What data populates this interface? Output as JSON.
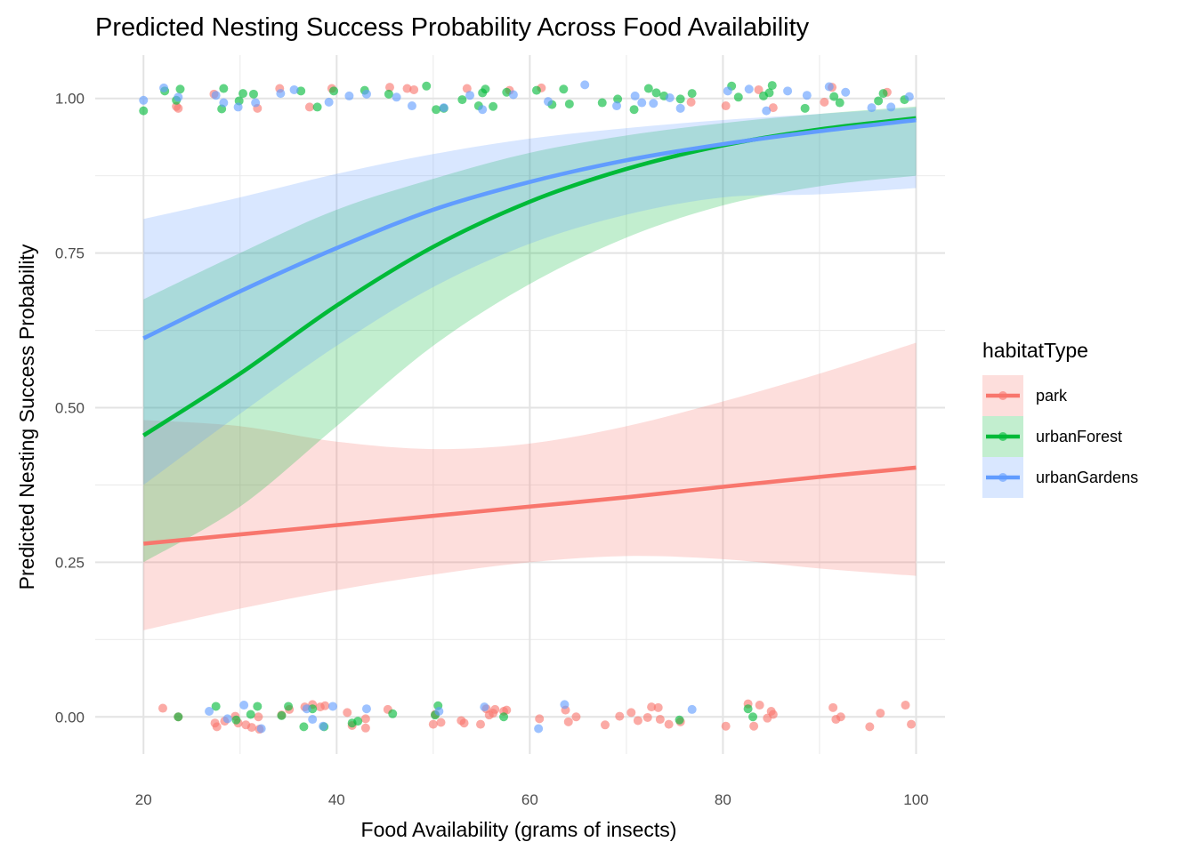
{
  "chart_data": {
    "type": "line",
    "title": "Predicted Nesting Success Probability Across Food Availability",
    "xlabel": "Food Availability (grams of insects)",
    "ylabel": "Predicted Nesting Success Probability",
    "xlim": [
      15,
      103
    ],
    "ylim": [
      -0.06,
      1.07
    ],
    "x_ticks": [
      20,
      40,
      60,
      80,
      100
    ],
    "x_tick_labels": [
      "20",
      "40",
      "60",
      "80",
      "100"
    ],
    "y_ticks": [
      0,
      0.25,
      0.5,
      0.75,
      1
    ],
    "y_tick_labels": [
      "0.00",
      "0.25",
      "0.50",
      "0.75",
      "1.00"
    ],
    "grid": true,
    "legend": {
      "title": "habitatType",
      "placement": "right",
      "entries": [
        "park",
        "urbanForest",
        "urbanGardens"
      ]
    },
    "x": [
      20,
      30,
      40,
      50,
      60,
      70,
      80,
      90,
      100
    ],
    "series": [
      {
        "name": "park",
        "color": "#F8766D",
        "fit": [
          0.28,
          0.295,
          0.31,
          0.325,
          0.34,
          0.355,
          0.372,
          0.388,
          0.403
        ],
        "lower": [
          0.14,
          0.175,
          0.205,
          0.23,
          0.25,
          0.26,
          0.255,
          0.24,
          0.228
        ],
        "upper": [
          0.48,
          0.47,
          0.445,
          0.433,
          0.442,
          0.47,
          0.51,
          0.555,
          0.605
        ],
        "points": [
          [
            22,
            0.014
          ],
          [
            23.6,
            0
          ],
          [
            27.4,
            -0.01
          ],
          [
            27.6,
            -0.016
          ],
          [
            28.4,
            -0.007
          ],
          [
            29.5,
            0.001
          ],
          [
            29.8,
            -0.01
          ],
          [
            30.6,
            -0.013
          ],
          [
            31.2,
            -0.017
          ],
          [
            31.9,
            0
          ],
          [
            32,
            -0.02
          ],
          [
            34.3,
            0.003
          ],
          [
            35.1,
            0.012
          ],
          [
            36.7,
            0.016
          ],
          [
            37.5,
            0.02
          ],
          [
            38.3,
            0.016
          ],
          [
            38.8,
            0.018
          ],
          [
            41.1,
            0.007
          ],
          [
            41.6,
            -0.014
          ],
          [
            43.0,
            -0.003
          ],
          [
            43.0,
            -0.018
          ],
          [
            45.3,
            0.012
          ],
          [
            50.0,
            -0.012
          ],
          [
            50.2,
            0.004
          ],
          [
            50.8,
            -0.009
          ],
          [
            52.9,
            -0.006
          ],
          [
            53.2,
            -0.01
          ],
          [
            54.9,
            -0.012
          ],
          [
            55.5,
            0.013
          ],
          [
            55.8,
            0.003
          ],
          [
            56.2,
            0.006
          ],
          [
            56.4,
            0.012
          ],
          [
            57.3,
            0.009
          ],
          [
            57.6,
            0.011
          ],
          [
            61.0,
            -0.003
          ],
          [
            63.7,
            0.011
          ],
          [
            64.0,
            -0.008
          ],
          [
            64.8,
            0
          ],
          [
            67.8,
            -0.013
          ],
          [
            69.3,
            0.001
          ],
          [
            70.5,
            0.007
          ],
          [
            71.2,
            -0.006
          ],
          [
            72.2,
            -0.001
          ],
          [
            72.6,
            0.016
          ],
          [
            73.3,
            0.015
          ],
          [
            73.5,
            -0.004
          ],
          [
            74.4,
            -0.012
          ],
          [
            75.6,
            -0.008
          ],
          [
            80.3,
            -0.015
          ],
          [
            82.6,
            0.021
          ],
          [
            83.2,
            -0.015
          ],
          [
            83.8,
            0.019
          ],
          [
            84.6,
            -0.002
          ],
          [
            85.0,
            0.009
          ],
          [
            85.2,
            0.004
          ],
          [
            91.4,
            0.015
          ],
          [
            91.7,
            -0.004
          ],
          [
            92.2,
            0
          ],
          [
            95.2,
            -0.016
          ],
          [
            96.3,
            0.006
          ],
          [
            98.9,
            0.019
          ],
          [
            99.5,
            -0.012
          ],
          [
            23.4,
            0.987
          ],
          [
            23.6,
            0.984
          ],
          [
            27.3,
            1.007
          ],
          [
            31.8,
            0.984
          ],
          [
            34.1,
            1.016
          ],
          [
            37.2,
            0.986
          ],
          [
            39.5,
            1.016
          ],
          [
            45.5,
            1.018
          ],
          [
            47.3,
            1.016
          ],
          [
            48.0,
            1.014
          ],
          [
            53.5,
            1.016
          ],
          [
            57.9,
            1.013
          ],
          [
            61.2,
            1.017
          ],
          [
            76.7,
            0.994
          ],
          [
            80.3,
            0.988
          ],
          [
            83.7,
            1.014
          ],
          [
            85.2,
            0.985
          ],
          [
            90.5,
            0.994
          ],
          [
            91.3,
            1.018
          ],
          [
            97.0,
            1.01
          ]
        ],
        "data_label": ""
      },
      {
        "name": "urbanForest",
        "color": "#00BA38",
        "fit": [
          0.455,
          0.555,
          0.665,
          0.76,
          0.833,
          0.886,
          0.924,
          0.95,
          0.968
        ],
        "lower": [
          0.25,
          0.34,
          0.47,
          0.6,
          0.7,
          0.775,
          0.827,
          0.858,
          0.875
        ],
        "upper": [
          0.675,
          0.75,
          0.82,
          0.87,
          0.912,
          0.94,
          0.96,
          0.975,
          0.987
        ],
        "points": [
          [
            23.6,
            0
          ],
          [
            27.5,
            0.017
          ],
          [
            29.6,
            -0.005
          ],
          [
            31.1,
            0.004
          ],
          [
            31.8,
            0.017
          ],
          [
            34.3,
            0.002
          ],
          [
            35.0,
            0.017
          ],
          [
            36.6,
            -0.016
          ],
          [
            37.5,
            0.013
          ],
          [
            38.7,
            -0.016
          ],
          [
            41.6,
            -0.01
          ],
          [
            42.2,
            -0.007
          ],
          [
            45.8,
            0.005
          ],
          [
            50.5,
            0.018
          ],
          [
            50.2,
            0.003
          ],
          [
            57.3,
            0
          ],
          [
            75.5,
            -0.005
          ],
          [
            82.6,
            0.013
          ],
          [
            83.1,
            0
          ],
          [
            20.0,
            0.98
          ],
          [
            22.2,
            1.012
          ],
          [
            23.4,
            0.997
          ],
          [
            23.8,
            1.015
          ],
          [
            28.1,
            0.983
          ],
          [
            28.3,
            1.016
          ],
          [
            29.9,
            0.996
          ],
          [
            30.3,
            1.008
          ],
          [
            31.4,
            1.007
          ],
          [
            36.3,
            1.012
          ],
          [
            38.0,
            0.986
          ],
          [
            39.7,
            1.012
          ],
          [
            42.9,
            1.013
          ],
          [
            45.4,
            1.007
          ],
          [
            49.3,
            1.02
          ],
          [
            50.3,
            0.982
          ],
          [
            51.1,
            0.984
          ],
          [
            53.0,
            0.998
          ],
          [
            54.7,
            0.988
          ],
          [
            55.1,
            1.009
          ],
          [
            55.4,
            1.015
          ],
          [
            56.2,
            0.987
          ],
          [
            57.6,
            1.01
          ],
          [
            60.7,
            1.013
          ],
          [
            62.3,
            0.99
          ],
          [
            63.5,
            1.015
          ],
          [
            64.1,
            0.991
          ],
          [
            67.5,
            0.993
          ],
          [
            69.1,
            0.999
          ],
          [
            70.8,
            0.982
          ],
          [
            72.3,
            1.016
          ],
          [
            73.1,
            1.009
          ],
          [
            73.9,
            1.004
          ],
          [
            75.6,
            0.999
          ],
          [
            76.8,
            1.008
          ],
          [
            80.9,
            1.02
          ],
          [
            81.6,
            1.002
          ],
          [
            84.2,
            1.004
          ],
          [
            84.8,
            1.009
          ],
          [
            85.1,
            1.021
          ],
          [
            88.5,
            0.984
          ],
          [
            91.5,
            1.003
          ],
          [
            92.1,
            0.993
          ],
          [
            96.1,
            0.996
          ],
          [
            96.6,
            1.008
          ],
          [
            98.8,
            0.998
          ]
        ],
        "data_label": ""
      },
      {
        "name": "urbanGardens",
        "color": "#619CFF",
        "fit": [
          0.612,
          0.688,
          0.758,
          0.82,
          0.865,
          0.9,
          0.926,
          0.947,
          0.965
        ],
        "lower": [
          0.375,
          0.49,
          0.6,
          0.695,
          0.765,
          0.812,
          0.84,
          0.845,
          0.855
        ],
        "upper": [
          0.805,
          0.84,
          0.878,
          0.91,
          0.935,
          0.952,
          0.965,
          0.975,
          0.985
        ],
        "points": [
          [
            26.8,
            0.009
          ],
          [
            28.7,
            -0.003
          ],
          [
            30.4,
            0.019
          ],
          [
            32.2,
            -0.019
          ],
          [
            36.9,
            0.013
          ],
          [
            37.5,
            -0.004
          ],
          [
            38.6,
            -0.015
          ],
          [
            39.6,
            0.017
          ],
          [
            43.1,
            0.013
          ],
          [
            50.6,
            0.009
          ],
          [
            55.3,
            0.016
          ],
          [
            63.6,
            0.02
          ],
          [
            60.9,
            -0.019
          ],
          [
            76.8,
            0.012
          ],
          [
            20.0,
            0.997
          ],
          [
            22.1,
            1.017
          ],
          [
            23.6,
            1.002
          ],
          [
            27.5,
            1.005
          ],
          [
            28.3,
            0.993
          ],
          [
            29.8,
            0.986
          ],
          [
            31.6,
            0.993
          ],
          [
            34.2,
            1.008
          ],
          [
            35.6,
            1.014
          ],
          [
            39.2,
            0.994
          ],
          [
            41.3,
            1.004
          ],
          [
            43.1,
            1.007
          ],
          [
            46.2,
            1.002
          ],
          [
            47.8,
            0.988
          ],
          [
            51.1,
            0.985
          ],
          [
            53.8,
            1.005
          ],
          [
            55.1,
            0.982
          ],
          [
            58.3,
            1.006
          ],
          [
            61.9,
            0.995
          ],
          [
            65.7,
            1.022
          ],
          [
            69.0,
            0.988
          ],
          [
            70.9,
            1.004
          ],
          [
            71.6,
            0.993
          ],
          [
            72.8,
            0.992
          ],
          [
            74.5,
            1.001
          ],
          [
            75.6,
            0.984
          ],
          [
            80.5,
            1.012
          ],
          [
            82.7,
            1.015
          ],
          [
            84.5,
            0.98
          ],
          [
            86.7,
            1.012
          ],
          [
            88.7,
            1.005
          ],
          [
            91.0,
            1.019
          ],
          [
            92.7,
            1.01
          ],
          [
            95.4,
            0.985
          ],
          [
            97.4,
            0.986
          ],
          [
            99.3,
            1.003
          ]
        ],
        "data_label": ""
      }
    ]
  }
}
